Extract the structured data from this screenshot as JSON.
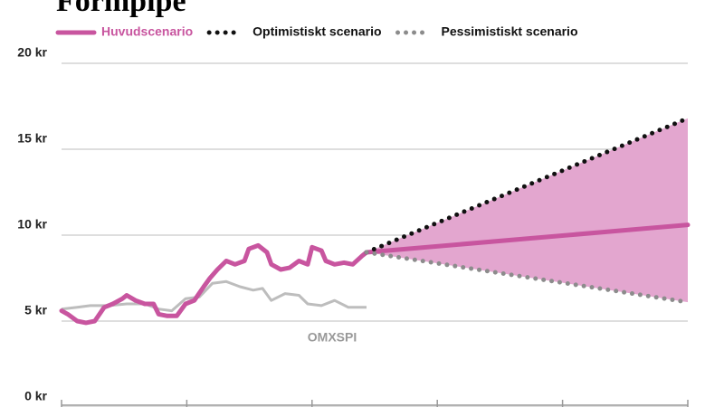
{
  "chart_data": {
    "type": "line",
    "title": "Formpipe",
    "series": [
      {
        "name": "Huvudscenario",
        "color": "#c8559f",
        "style": "solid",
        "x": [
          0,
          1,
          2.5,
          3.9,
          5.3,
          6.8,
          8.2,
          9.7,
          10.4,
          11.8,
          13.3,
          14.7,
          15.5,
          16.9,
          18.4,
          19.8,
          21.2,
          22.7,
          23.7,
          24.9,
          26.3,
          27.7,
          29.2,
          29.9,
          31.4,
          32.8,
          33.5,
          35,
          36.4,
          37.9,
          39.3,
          40,
          41.5,
          42.2,
          43.6,
          45.1,
          46.5,
          48,
          48.7,
          100
        ],
        "values": [
          5.6,
          5.4,
          5.0,
          4.9,
          5.0,
          5.8,
          6.0,
          6.3,
          6.5,
          6.2,
          6.0,
          6.0,
          5.4,
          5.3,
          5.3,
          6.0,
          6.2,
          7.0,
          7.5,
          8.0,
          8.5,
          8.3,
          8.5,
          9.2,
          9.4,
          9.0,
          8.3,
          8.0,
          8.1,
          8.5,
          8.3,
          9.3,
          9.1,
          8.5,
          8.3,
          8.4,
          8.3,
          8.8,
          9.0,
          10.6
        ]
      },
      {
        "name": "Optimistiskt scenario",
        "color": "#111111",
        "style": "dotted",
        "x": [
          48.7,
          100
        ],
        "values": [
          9.0,
          16.8
        ]
      },
      {
        "name": "Pessimistiskt scenario",
        "color": "#8c8c8c",
        "style": "dotted",
        "x": [
          48.7,
          100
        ],
        "values": [
          9.0,
          6.1
        ]
      },
      {
        "name": "OMXSPI",
        "color": "#bdbdbd",
        "style": "thin",
        "legend": false,
        "x": [
          0,
          2.5,
          4.6,
          7.5,
          10.4,
          13.3,
          15.5,
          17.6,
          19.8,
          22,
          24.1,
          26.3,
          28.5,
          30.6,
          32.1,
          33.5,
          35.7,
          37.9,
          39.3,
          41.5,
          43.6,
          45.8,
          48.7
        ],
        "values": [
          5.7,
          5.8,
          5.9,
          5.9,
          6.0,
          6.0,
          5.7,
          5.6,
          6.3,
          6.4,
          7.2,
          7.3,
          7.0,
          6.8,
          6.9,
          6.2,
          6.6,
          6.5,
          6.0,
          5.9,
          6.2,
          5.8,
          5.8
        ]
      }
    ],
    "band_color": "#e3a6cf",
    "xlim": [
      0,
      100
    ],
    "xticks": [
      0,
      20,
      40,
      60,
      80,
      100
    ],
    "ylim": [
      0,
      20
    ],
    "yticks": [
      {
        "value": 0,
        "label": "0 kr"
      },
      {
        "value": 5,
        "label": "5 kr"
      },
      {
        "value": 10,
        "label": "10 kr"
      },
      {
        "value": 15,
        "label": "15 kr"
      },
      {
        "value": 20,
        "label": "20 kr"
      }
    ],
    "grid": true
  }
}
